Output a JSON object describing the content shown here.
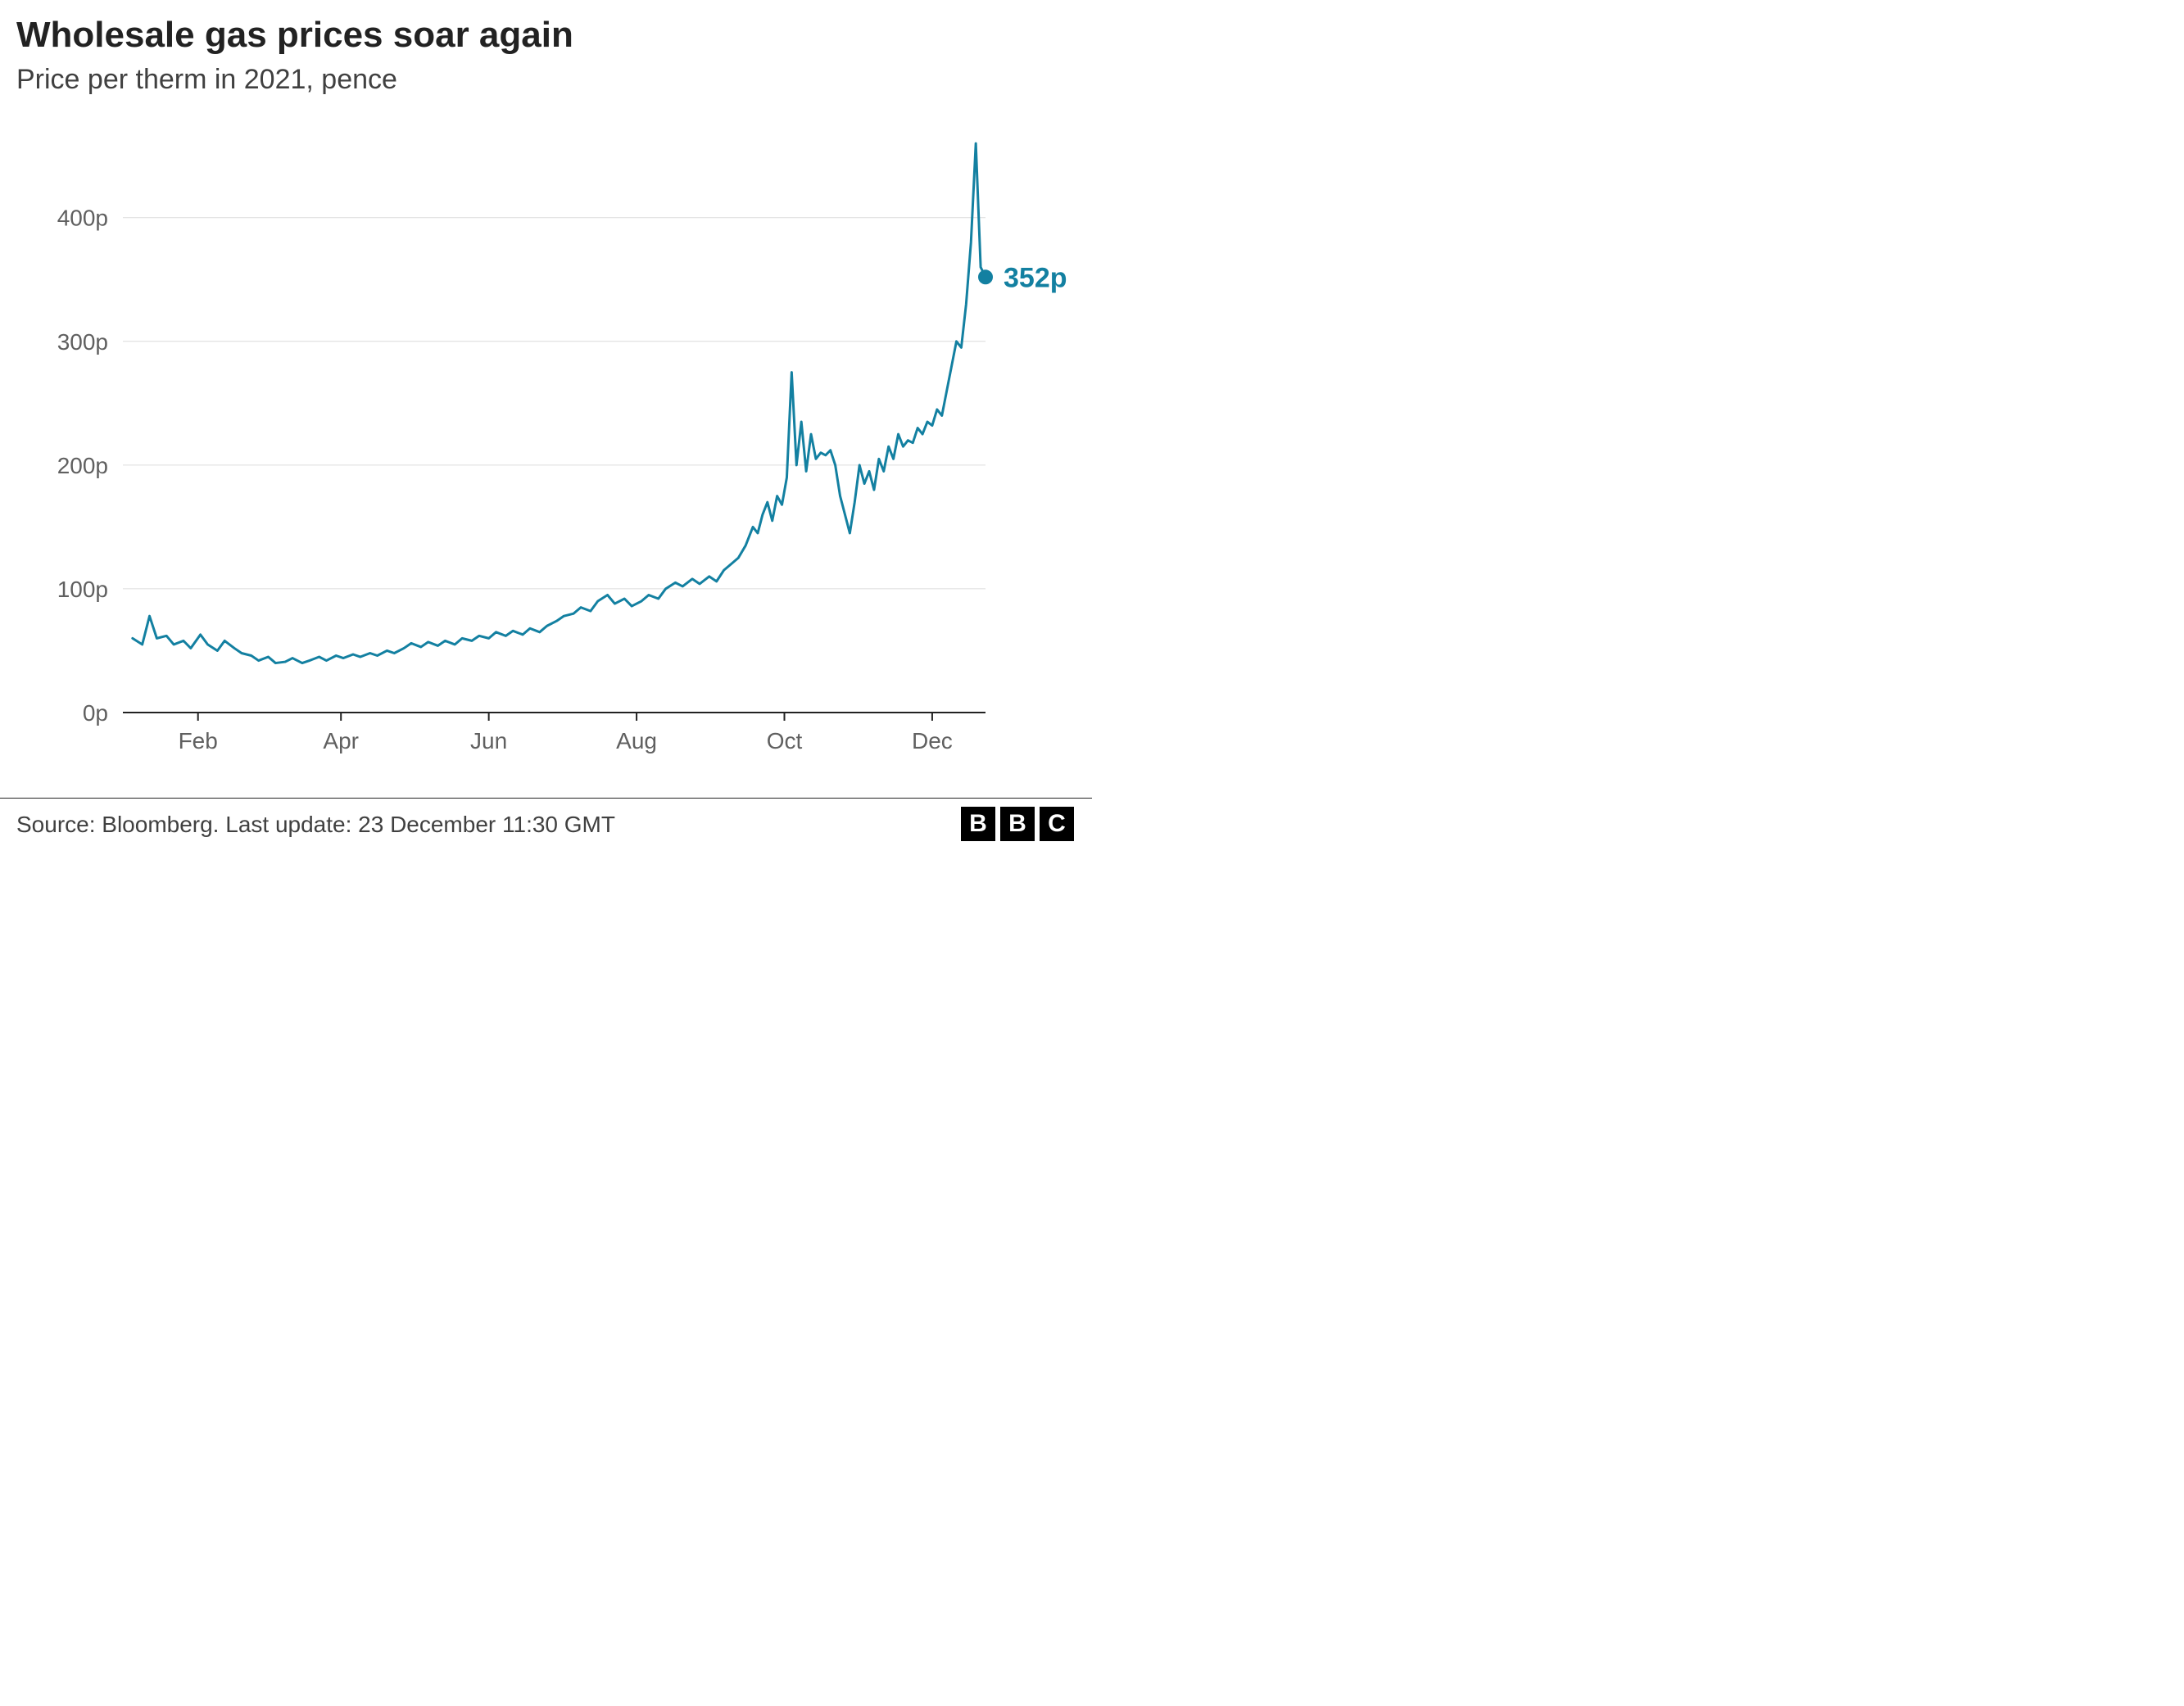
{
  "title": "Wholesale gas prices soar again",
  "subtitle": "Price per therm in 2021, pence",
  "source_line": "Source: Bloomberg. Last update: 23 December 11:30 GMT",
  "logo_letters": [
    "B",
    "B",
    "C"
  ],
  "chart": {
    "type": "line",
    "background_color": "#ffffff",
    "grid_color": "#dcdcdc",
    "axis_color": "#222222",
    "tick_label_color": "#606060",
    "line_color": "#1380A1",
    "line_width": 3,
    "marker_color": "#1380A1",
    "marker_radius": 9,
    "end_label": "352p",
    "end_label_color": "#1380A1",
    "end_label_fontsize": 34,
    "title_fontsize": 44,
    "subtitle_fontsize": 34,
    "tick_fontsize": 28,
    "xlim": [
      0,
      356
    ],
    "ylim": [
      0,
      470
    ],
    "y_ticks": [
      {
        "v": 0,
        "label": "0p"
      },
      {
        "v": 100,
        "label": "100p"
      },
      {
        "v": 200,
        "label": "200p"
      },
      {
        "v": 300,
        "label": "300p"
      },
      {
        "v": 400,
        "label": "400p"
      }
    ],
    "x_ticks": [
      {
        "v": 31,
        "label": "Feb"
      },
      {
        "v": 90,
        "label": "Apr"
      },
      {
        "v": 151,
        "label": "Jun"
      },
      {
        "v": 212,
        "label": "Aug"
      },
      {
        "v": 273,
        "label": "Oct"
      },
      {
        "v": 334,
        "label": "Dec"
      }
    ],
    "series": [
      {
        "x": 4,
        "y": 60
      },
      {
        "x": 8,
        "y": 55
      },
      {
        "x": 11,
        "y": 78
      },
      {
        "x": 14,
        "y": 60
      },
      {
        "x": 18,
        "y": 62
      },
      {
        "x": 21,
        "y": 55
      },
      {
        "x": 25,
        "y": 58
      },
      {
        "x": 28,
        "y": 52
      },
      {
        "x": 32,
        "y": 63
      },
      {
        "x": 35,
        "y": 55
      },
      {
        "x": 39,
        "y": 50
      },
      {
        "x": 42,
        "y": 58
      },
      {
        "x": 46,
        "y": 52
      },
      {
        "x": 49,
        "y": 48
      },
      {
        "x": 53,
        "y": 46
      },
      {
        "x": 56,
        "y": 42
      },
      {
        "x": 60,
        "y": 45
      },
      {
        "x": 63,
        "y": 40
      },
      {
        "x": 67,
        "y": 41
      },
      {
        "x": 70,
        "y": 44
      },
      {
        "x": 74,
        "y": 40
      },
      {
        "x": 77,
        "y": 42
      },
      {
        "x": 81,
        "y": 45
      },
      {
        "x": 84,
        "y": 42
      },
      {
        "x": 88,
        "y": 46
      },
      {
        "x": 91,
        "y": 44
      },
      {
        "x": 95,
        "y": 47
      },
      {
        "x": 98,
        "y": 45
      },
      {
        "x": 102,
        "y": 48
      },
      {
        "x": 105,
        "y": 46
      },
      {
        "x": 109,
        "y": 50
      },
      {
        "x": 112,
        "y": 48
      },
      {
        "x": 116,
        "y": 52
      },
      {
        "x": 119,
        "y": 56
      },
      {
        "x": 123,
        "y": 53
      },
      {
        "x": 126,
        "y": 57
      },
      {
        "x": 130,
        "y": 54
      },
      {
        "x": 133,
        "y": 58
      },
      {
        "x": 137,
        "y": 55
      },
      {
        "x": 140,
        "y": 60
      },
      {
        "x": 144,
        "y": 58
      },
      {
        "x": 147,
        "y": 62
      },
      {
        "x": 151,
        "y": 60
      },
      {
        "x": 154,
        "y": 65
      },
      {
        "x": 158,
        "y": 62
      },
      {
        "x": 161,
        "y": 66
      },
      {
        "x": 165,
        "y": 63
      },
      {
        "x": 168,
        "y": 68
      },
      {
        "x": 172,
        "y": 65
      },
      {
        "x": 175,
        "y": 70
      },
      {
        "x": 179,
        "y": 74
      },
      {
        "x": 182,
        "y": 78
      },
      {
        "x": 186,
        "y": 80
      },
      {
        "x": 189,
        "y": 85
      },
      {
        "x": 193,
        "y": 82
      },
      {
        "x": 196,
        "y": 90
      },
      {
        "x": 200,
        "y": 95
      },
      {
        "x": 203,
        "y": 88
      },
      {
        "x": 207,
        "y": 92
      },
      {
        "x": 210,
        "y": 86
      },
      {
        "x": 214,
        "y": 90
      },
      {
        "x": 217,
        "y": 95
      },
      {
        "x": 221,
        "y": 92
      },
      {
        "x": 224,
        "y": 100
      },
      {
        "x": 228,
        "y": 105
      },
      {
        "x": 231,
        "y": 102
      },
      {
        "x": 235,
        "y": 108
      },
      {
        "x": 238,
        "y": 104
      },
      {
        "x": 242,
        "y": 110
      },
      {
        "x": 245,
        "y": 106
      },
      {
        "x": 248,
        "y": 115
      },
      {
        "x": 251,
        "y": 120
      },
      {
        "x": 254,
        "y": 125
      },
      {
        "x": 257,
        "y": 135
      },
      {
        "x": 260,
        "y": 150
      },
      {
        "x": 262,
        "y": 145
      },
      {
        "x": 264,
        "y": 160
      },
      {
        "x": 266,
        "y": 170
      },
      {
        "x": 268,
        "y": 155
      },
      {
        "x": 270,
        "y": 175
      },
      {
        "x": 272,
        "y": 168
      },
      {
        "x": 274,
        "y": 190
      },
      {
        "x": 276,
        "y": 275
      },
      {
        "x": 278,
        "y": 200
      },
      {
        "x": 280,
        "y": 235
      },
      {
        "x": 282,
        "y": 195
      },
      {
        "x": 284,
        "y": 225
      },
      {
        "x": 286,
        "y": 205
      },
      {
        "x": 288,
        "y": 210
      },
      {
        "x": 290,
        "y": 208
      },
      {
        "x": 292,
        "y": 212
      },
      {
        "x": 294,
        "y": 200
      },
      {
        "x": 296,
        "y": 175
      },
      {
        "x": 298,
        "y": 160
      },
      {
        "x": 300,
        "y": 145
      },
      {
        "x": 302,
        "y": 170
      },
      {
        "x": 304,
        "y": 200
      },
      {
        "x": 306,
        "y": 185
      },
      {
        "x": 308,
        "y": 195
      },
      {
        "x": 310,
        "y": 180
      },
      {
        "x": 312,
        "y": 205
      },
      {
        "x": 314,
        "y": 195
      },
      {
        "x": 316,
        "y": 215
      },
      {
        "x": 318,
        "y": 205
      },
      {
        "x": 320,
        "y": 225
      },
      {
        "x": 322,
        "y": 215
      },
      {
        "x": 324,
        "y": 220
      },
      {
        "x": 326,
        "y": 218
      },
      {
        "x": 328,
        "y": 230
      },
      {
        "x": 330,
        "y": 225
      },
      {
        "x": 332,
        "y": 235
      },
      {
        "x": 334,
        "y": 232
      },
      {
        "x": 336,
        "y": 245
      },
      {
        "x": 338,
        "y": 240
      },
      {
        "x": 340,
        "y": 260
      },
      {
        "x": 342,
        "y": 280
      },
      {
        "x": 344,
        "y": 300
      },
      {
        "x": 346,
        "y": 295
      },
      {
        "x": 348,
        "y": 330
      },
      {
        "x": 350,
        "y": 380
      },
      {
        "x": 352,
        "y": 460
      },
      {
        "x": 354,
        "y": 360
      },
      {
        "x": 356,
        "y": 352
      }
    ]
  }
}
